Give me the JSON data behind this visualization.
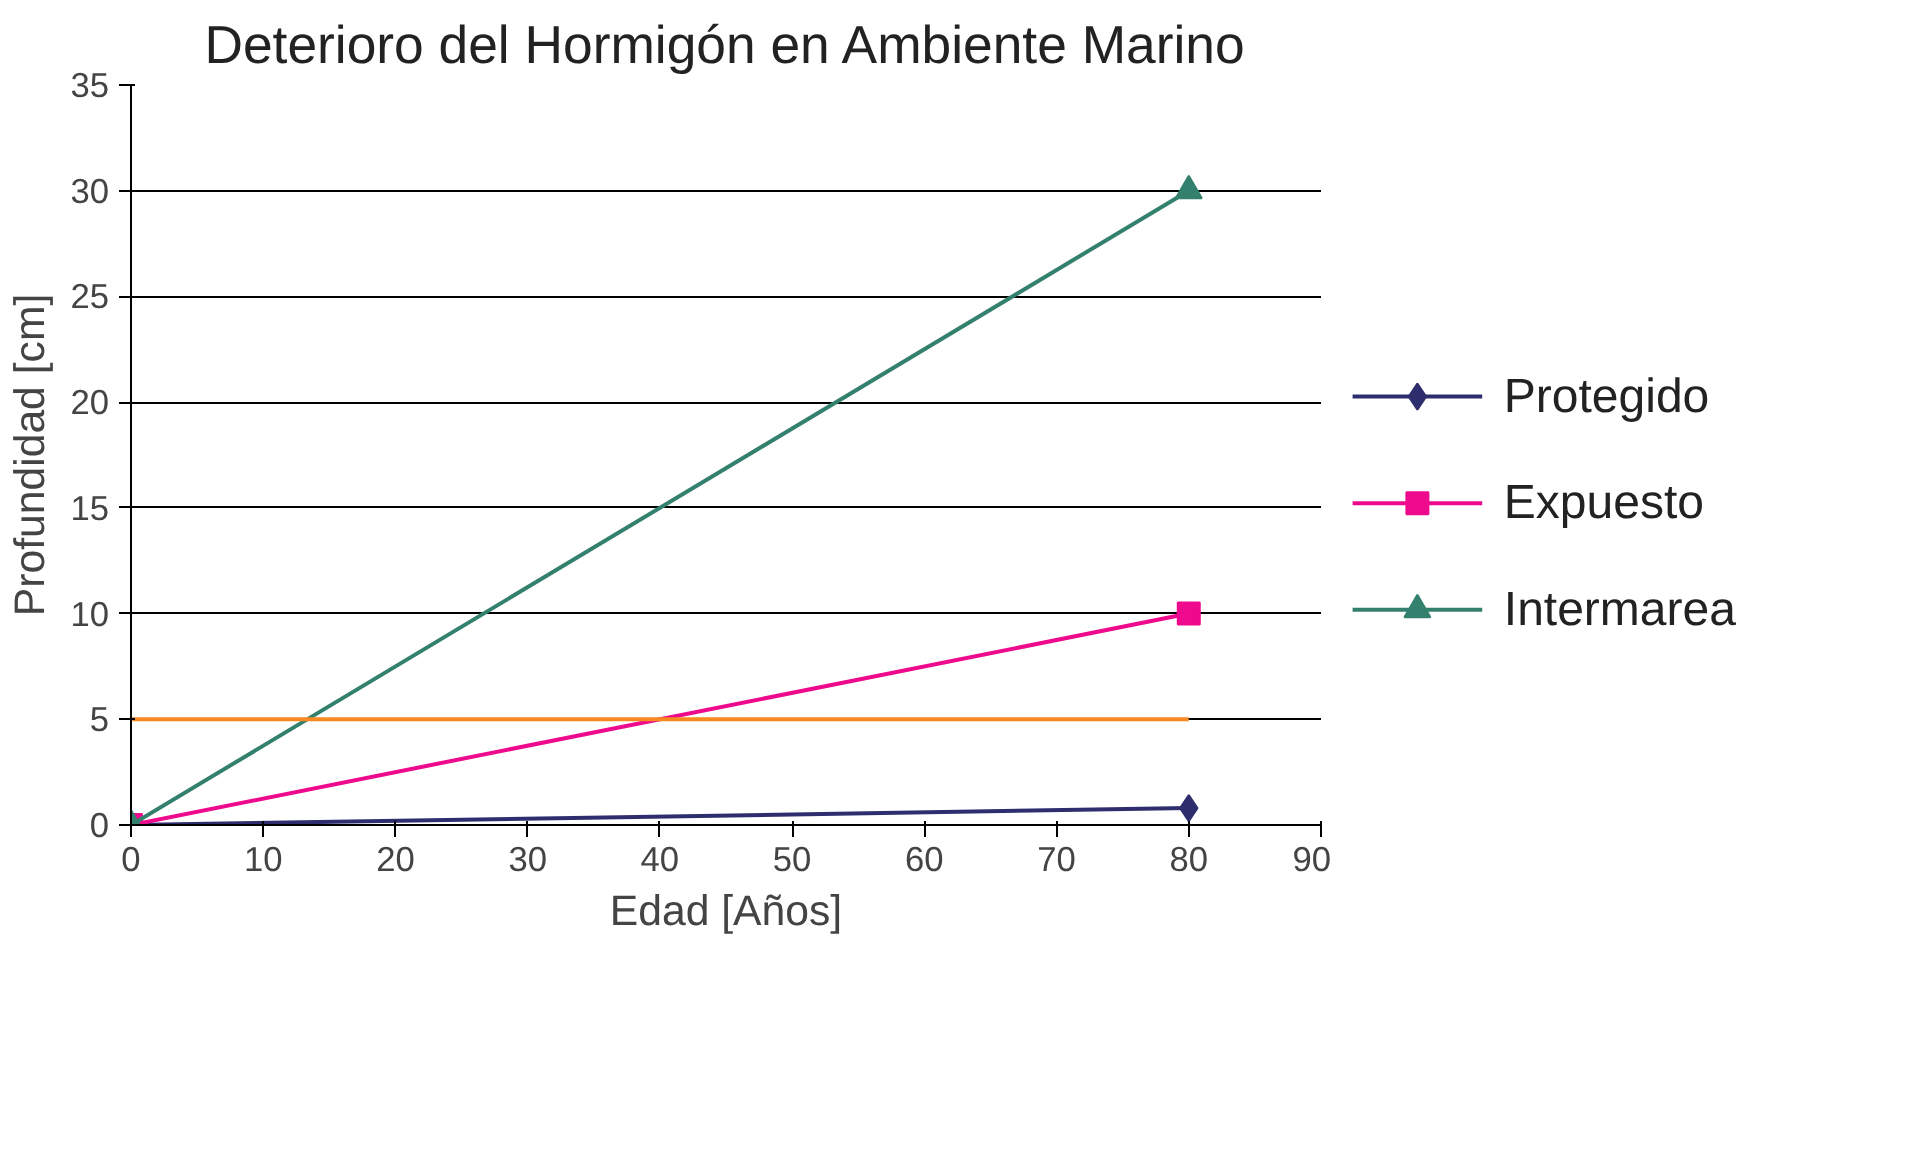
{
  "chart_data": {
    "type": "line",
    "title": "Deterioro del Hormigón en Ambiente Marino",
    "xlabel": "Edad [Años]",
    "ylabel": "Profundidad [cm]",
    "x": [
      0,
      80
    ],
    "series": [
      {
        "name": "Protegido",
        "color": "#2e2e6e",
        "values": [
          0,
          0.8
        ],
        "marker": "diamond"
      },
      {
        "name": "Expuesto",
        "color": "#ee0a8c",
        "values": [
          0,
          10
        ],
        "marker": "square"
      },
      {
        "name": "Intermarea",
        "color": "#34806f",
        "values": [
          0,
          30
        ],
        "marker": "triangle"
      },
      {
        "color": "#f7891f",
        "values": [
          5,
          5
        ],
        "marker": "none"
      }
    ],
    "xlim": [
      0,
      90
    ],
    "xticks": [
      0,
      10,
      20,
      30,
      40,
      50,
      60,
      70,
      80,
      90
    ],
    "ylim": [
      0,
      35
    ],
    "yticks": [
      0,
      5,
      10,
      15,
      20,
      25,
      30,
      35
    ],
    "grid": "y",
    "legend": "right",
    "line_style": "solid"
  }
}
